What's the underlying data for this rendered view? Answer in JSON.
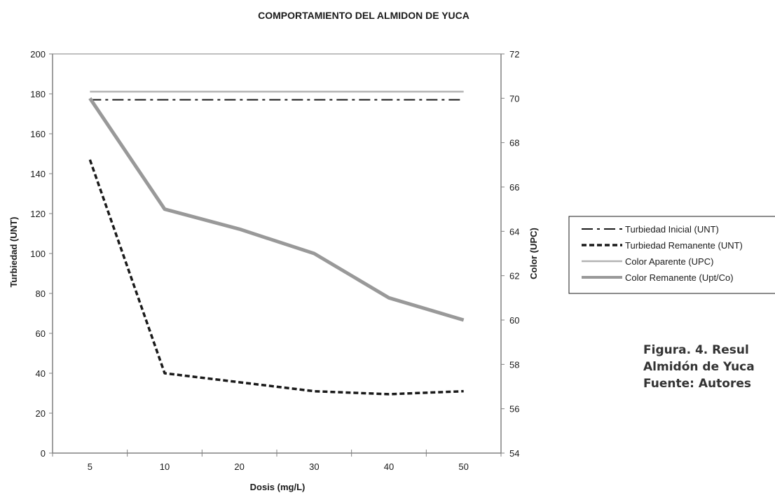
{
  "chart_data": {
    "type": "line",
    "title": "COMPORTAMIENTO DEL ALMIDON DE YUCA",
    "xlabel": "Dosis (mg/L)",
    "ylabel": "Turbiedad (UNT)",
    "y2label": "Color (UPC)",
    "categories": [
      "5",
      "10",
      "20",
      "30",
      "40",
      "50"
    ],
    "ylim": [
      0,
      200
    ],
    "y2lim": [
      54,
      72
    ],
    "yticks": [
      "0",
      "20",
      "40",
      "60",
      "80",
      "100",
      "120",
      "140",
      "160",
      "180",
      "200"
    ],
    "y2ticks": [
      "54",
      "56",
      "58",
      "60",
      "62",
      "64",
      "66",
      "68",
      "70",
      "72"
    ],
    "grid": false,
    "legend_position": "right",
    "series": [
      {
        "name": "Turbiedad Inicial (UNT)",
        "axis": "left",
        "style": "dash-dot",
        "color": "#1a1a1a",
        "values": [
          177,
          177,
          177,
          177,
          177,
          177
        ]
      },
      {
        "name": "Turbiedad Remanente (UNT)",
        "axis": "left",
        "style": "dotted",
        "color": "#1a1a1a",
        "values": [
          147,
          40,
          35.5,
          31,
          29.5,
          31
        ]
      },
      {
        "name": "Color Aparente (UPC)",
        "axis": "right",
        "style": "solid-thin",
        "color": "#b3b3b3",
        "values": [
          70.3,
          70.3,
          70.3,
          70.3,
          70.3,
          70.3
        ]
      },
      {
        "name": "Color Remanente (Upt/Co)",
        "axis": "right",
        "style": "solid-thick",
        "color": "#999999",
        "values": [
          70,
          65,
          64.1,
          63,
          61,
          60
        ]
      }
    ]
  },
  "caption": {
    "line1": "Figura. 4. Resul",
    "line2": "Almidón de Yuca",
    "line3": "Fuente: Autores"
  }
}
